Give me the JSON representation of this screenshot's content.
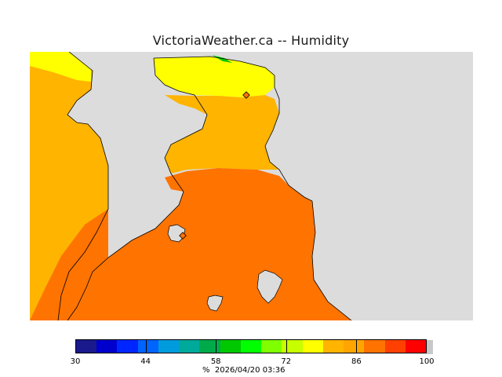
{
  "title": "VictoriaWeather.ca -- Humidity",
  "legend": {
    "colors": [
      "#1a1a8c",
      "#0000cc",
      "#0026ff",
      "#0064ff",
      "#009bdc",
      "#00aa9a",
      "#00aa4a",
      "#00c800",
      "#00ff00",
      "#80ff00",
      "#c8ff00",
      "#ffff00",
      "#ffb400",
      "#ffa500",
      "#ff7300",
      "#ff4000",
      "#ff0000"
    ],
    "ticks": [
      {
        "value": 30,
        "label": "30"
      },
      {
        "value": 44,
        "label": "44"
      },
      {
        "value": 58,
        "label": "58"
      },
      {
        "value": 72,
        "label": "72"
      },
      {
        "value": 86,
        "label": "86"
      },
      {
        "value": 100,
        "label": "100"
      }
    ],
    "min": 30,
    "max": 100
  },
  "footer": {
    "unit": "%",
    "timestamp": "2026/04/20 03:36"
  },
  "map_colors": {
    "land_bg": "#dcdcdc",
    "band_yellow": "#ffff00",
    "band_amber": "#ffb400",
    "band_orange": "#ff7300",
    "band_green": "#00c800",
    "marker": "#ff7300"
  }
}
